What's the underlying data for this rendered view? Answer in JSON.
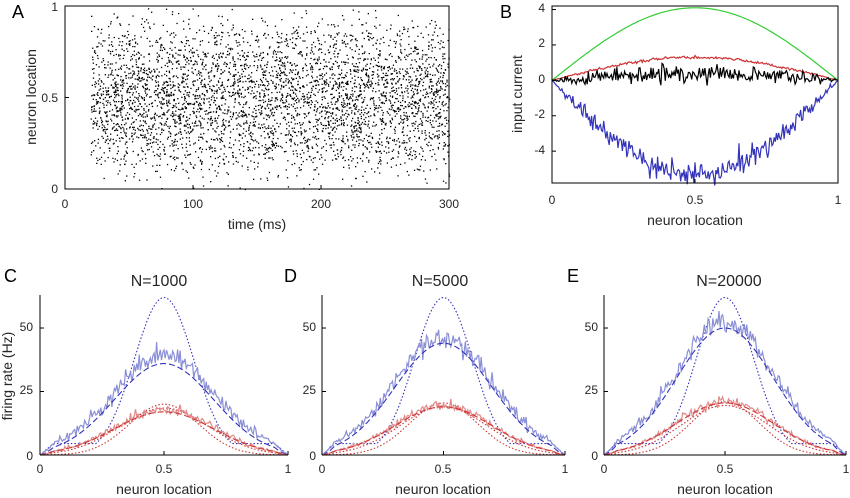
{
  "chart_data": [
    {
      "panel": "A",
      "type": "scatter",
      "xlabel": "time (ms)",
      "ylabel": "neuron location",
      "xlim": [
        0,
        300
      ],
      "ylim": [
        0,
        1
      ],
      "xticks": [
        "0",
        "100",
        "200",
        "300"
      ],
      "yticks": [
        "0",
        "0.5",
        "1"
      ],
      "onset_time": 20,
      "grid": false,
      "point_color": "#000000"
    },
    {
      "panel": "B",
      "type": "line",
      "xlabel": "neuron location",
      "ylabel": "input current",
      "xlim": [
        0,
        1
      ],
      "ylim": [
        -5.8,
        4.2
      ],
      "xticks": [
        "0",
        "0.5",
        "1"
      ],
      "yticks": [
        "4",
        "2",
        "0",
        "-2",
        "-4"
      ],
      "series": [
        {
          "color": "#33cc33",
          "peak": 4.1,
          "shape": "sine",
          "noise": 0
        },
        {
          "color": "#cc3333",
          "peak": 1.3,
          "shape": "sine",
          "noise": 0.04
        },
        {
          "color": "#000000",
          "peak": 0.4,
          "shape": "sine",
          "noise": 0.25
        },
        {
          "color": "#3333bb",
          "peak": -5.3,
          "shape": "sine",
          "noise": 0.3
        }
      ]
    },
    {
      "panel": "C",
      "type": "line",
      "title": "N=1000",
      "xlabel": "neuron location",
      "ylabel": "firing rate (Hz)",
      "xlim": [
        0,
        1
      ],
      "ylim": [
        0,
        63
      ],
      "xticks": [
        "0",
        "0.5",
        "1"
      ],
      "yticks": [
        "0",
        "25",
        "50"
      ],
      "blue_peaks": {
        "dotted": 62,
        "solid": 38,
        "dashed": 36
      },
      "red_peaks": {
        "dotted": 20,
        "solid": 18,
        "dashed": 17
      }
    },
    {
      "panel": "D",
      "type": "line",
      "title": "N=5000",
      "xlabel": "neuron location",
      "ylabel": "",
      "xlim": [
        0,
        1
      ],
      "ylim": [
        0,
        63
      ],
      "xticks": [
        "0",
        "0.5",
        "1"
      ],
      "yticks": [
        "0",
        "25",
        "50"
      ],
      "blue_peaks": {
        "dotted": 62,
        "solid": 45,
        "dashed": 44
      },
      "red_peaks": {
        "dotted": 20.5,
        "solid": 19.5,
        "dashed": 19
      }
    },
    {
      "panel": "E",
      "type": "line",
      "title": "N=20000",
      "xlabel": "neuron location",
      "ylabel": "",
      "xlim": [
        0,
        1
      ],
      "ylim": [
        0,
        63
      ],
      "xticks": [
        "0",
        "0.5",
        "1"
      ],
      "yticks": [
        "0",
        "25",
        "50"
      ],
      "blue_peaks": {
        "dotted": 62,
        "solid": 51,
        "dashed": 50
      },
      "red_peaks": {
        "dotted": 21,
        "solid": 21,
        "dashed": 20.5
      }
    }
  ],
  "colors": {
    "blue": "#3333bb",
    "blue_light": "#8a8fd6",
    "red": "#cc3333",
    "red_light": "#e08a8a",
    "green": "#33cc33"
  }
}
